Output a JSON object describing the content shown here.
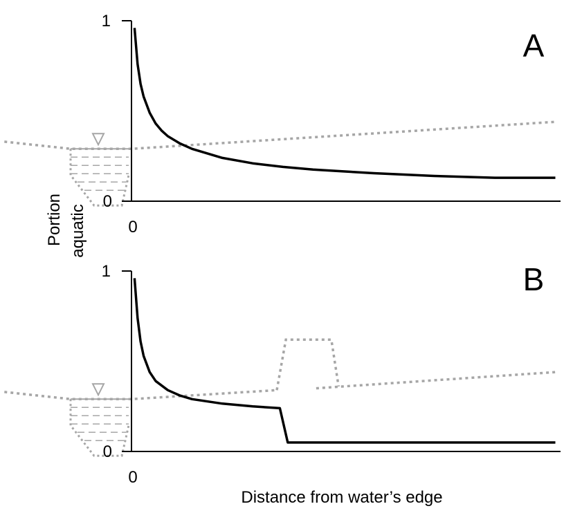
{
  "chart_data": [
    {
      "type": "line",
      "panel_letter": "A",
      "ylabel_lines": [
        "Portion",
        "aquatic"
      ],
      "xlabel": "",
      "y_tick_top": "1",
      "y_tick_bottom": "0",
      "x_tick_origin": "0",
      "ylim": [
        0,
        1
      ],
      "series": [
        {
          "kind": "solid-black",
          "x": [
            0.05,
            0.1,
            0.15,
            0.2,
            0.3,
            0.4,
            0.5,
            0.6,
            0.8,
            1.0,
            1.5,
            2.0,
            2.5,
            3.0,
            3.5,
            4.0,
            5.0,
            6.0,
            7.0
          ],
          "y": [
            0.96,
            0.76,
            0.65,
            0.58,
            0.49,
            0.43,
            0.39,
            0.36,
            0.32,
            0.29,
            0.24,
            0.21,
            0.19,
            0.175,
            0.165,
            0.155,
            0.14,
            0.13,
            0.13
          ]
        }
      ],
      "schematic": {
        "water_symbol": "triangle-down-icon",
        "water_surface_level": 0.29,
        "ground_profile": [
          {
            "x": -2.1,
            "y": 0.33
          },
          {
            "x": -1.0,
            "y": 0.29
          },
          {
            "x": 0.0,
            "y": 0.29
          },
          {
            "x": 7.0,
            "y": 0.44
          }
        ],
        "color": "#a6a6a6"
      }
    },
    {
      "type": "line",
      "panel_letter": "B",
      "xlabel": "Distance from water’s edge",
      "y_tick_top": "1",
      "y_tick_bottom": "0",
      "x_tick_origin": "0",
      "ylim": [
        0,
        1
      ],
      "series": [
        {
          "kind": "solid-black",
          "x": [
            0.05,
            0.1,
            0.15,
            0.2,
            0.3,
            0.4,
            0.6,
            0.8,
            1.0,
            1.5,
            2.0,
            2.45,
            2.58,
            7.0
          ],
          "y": [
            0.96,
            0.74,
            0.61,
            0.53,
            0.44,
            0.39,
            0.34,
            0.31,
            0.29,
            0.265,
            0.25,
            0.24,
            0.05,
            0.05
          ]
        }
      ],
      "schematic": {
        "water_symbol": "triangle-down-icon",
        "water_surface_level": 0.29,
        "ground_profile_left": [
          {
            "x": -2.1,
            "y": 0.33
          },
          {
            "x": -1.0,
            "y": 0.29
          },
          {
            "x": 0.0,
            "y": 0.29
          },
          {
            "x": 2.4,
            "y": 0.34
          }
        ],
        "levee": [
          {
            "x": 2.4,
            "y": 0.34
          },
          {
            "x": 2.55,
            "y": 0.62
          },
          {
            "x": 3.3,
            "y": 0.62
          },
          {
            "x": 3.42,
            "y": 0.36
          }
        ],
        "ground_profile_right": [
          {
            "x": 3.05,
            "y": 0.35
          },
          {
            "x": 7.0,
            "y": 0.44
          }
        ],
        "color": "#a6a6a6"
      }
    }
  ]
}
